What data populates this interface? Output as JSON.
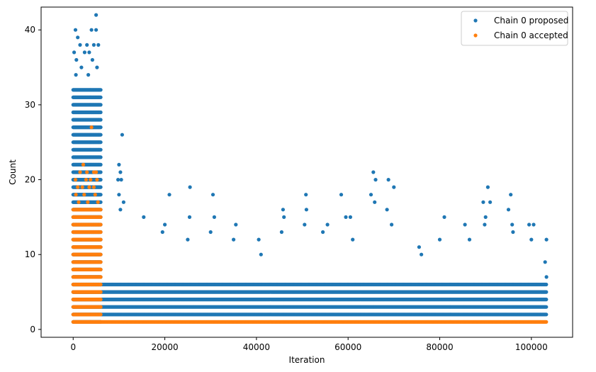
{
  "chart_data": {
    "type": "scatter",
    "title": "",
    "xlabel": "Iteration",
    "ylabel": "Count",
    "xlim": [
      -7000,
      109000
    ],
    "ylim": [
      -1.05,
      43.05
    ],
    "xticks": [
      0,
      20000,
      40000,
      60000,
      80000,
      100000
    ],
    "xtick_labels": [
      "0",
      "20000",
      "40000",
      "60000",
      "80000",
      "100000"
    ],
    "yticks": [
      0,
      10,
      20,
      30,
      40
    ],
    "ytick_labels": [
      "0",
      "10",
      "20",
      "30",
      "40"
    ],
    "grid": false,
    "legend_position": "top-right",
    "series": [
      {
        "name": "Chain 0 proposed",
        "color": "#1f77b4",
        "marker": "circle",
        "segments": [
          {
            "x_range": [
              0,
              6000
            ],
            "y_min": 1,
            "y_max": 32
          },
          {
            "x_range": [
              6000,
              103300
            ],
            "y_min": 2,
            "y_max": 6
          }
        ],
        "points": [
          [
            5000,
            42
          ],
          [
            500,
            40
          ],
          [
            4000,
            40
          ],
          [
            5000,
            40
          ],
          [
            1000,
            39
          ],
          [
            1500,
            38
          ],
          [
            3000,
            38
          ],
          [
            4500,
            38
          ],
          [
            5500,
            38
          ],
          [
            200,
            37
          ],
          [
            2500,
            37
          ],
          [
            3500,
            37
          ],
          [
            700,
            36
          ],
          [
            4200,
            36
          ],
          [
            1800,
            35
          ],
          [
            5200,
            35
          ],
          [
            600,
            34
          ],
          [
            3300,
            34
          ],
          [
            10700,
            26
          ],
          [
            10000,
            22
          ],
          [
            10300,
            21
          ],
          [
            9800,
            20
          ],
          [
            10500,
            20
          ],
          [
            10000,
            18
          ],
          [
            11000,
            17
          ],
          [
            10300,
            16
          ],
          [
            15400,
            15
          ],
          [
            21000,
            18
          ],
          [
            20000,
            14
          ],
          [
            19500,
            13
          ],
          [
            25500,
            19
          ],
          [
            25400,
            15
          ],
          [
            25000,
            12
          ],
          [
            30500,
            18
          ],
          [
            30800,
            15
          ],
          [
            30000,
            13
          ],
          [
            35500,
            14
          ],
          [
            35000,
            12
          ],
          [
            40500,
            12
          ],
          [
            41000,
            10
          ],
          [
            45800,
            16
          ],
          [
            46000,
            15
          ],
          [
            45500,
            13
          ],
          [
            50800,
            18
          ],
          [
            50900,
            16
          ],
          [
            50500,
            14
          ],
          [
            55500,
            14
          ],
          [
            54500,
            13
          ],
          [
            58500,
            18
          ],
          [
            59500,
            15
          ],
          [
            60500,
            15
          ],
          [
            61000,
            12
          ],
          [
            65500,
            21
          ],
          [
            65000,
            18
          ],
          [
            66000,
            20
          ],
          [
            65800,
            17
          ],
          [
            68800,
            20
          ],
          [
            68500,
            16
          ],
          [
            70000,
            19
          ],
          [
            69500,
            14
          ],
          [
            75500,
            11
          ],
          [
            76000,
            10
          ],
          [
            81000,
            15
          ],
          [
            80000,
            12
          ],
          [
            85500,
            14
          ],
          [
            86500,
            12
          ],
          [
            89500,
            17
          ],
          [
            90500,
            19
          ],
          [
            91000,
            17
          ],
          [
            90000,
            15
          ],
          [
            89800,
            14
          ],
          [
            95500,
            18
          ],
          [
            95000,
            16
          ],
          [
            95800,
            14
          ],
          [
            96000,
            13
          ],
          [
            99500,
            14
          ],
          [
            100500,
            14
          ],
          [
            100000,
            12
          ],
          [
            103300,
            12
          ],
          [
            103000,
            9
          ],
          [
            103300,
            7
          ]
        ]
      },
      {
        "name": "Chain 0 accepted",
        "color": "#ff7f0e",
        "marker": "circle",
        "segments": [
          {
            "x_range": [
              0,
              6000
            ],
            "y_min": 1,
            "y_max": 16
          },
          {
            "x_range": [
              6000,
              103300
            ],
            "y_min": 1,
            "y_max": 1
          }
        ],
        "points": [
          [
            4000,
            27
          ],
          [
            2200,
            22
          ],
          [
            1500,
            21
          ],
          [
            3000,
            21
          ],
          [
            4500,
            21
          ],
          [
            5000,
            21
          ],
          [
            500,
            20
          ],
          [
            2800,
            20
          ],
          [
            3800,
            20
          ],
          [
            5200,
            20
          ],
          [
            1000,
            19
          ],
          [
            2000,
            19
          ],
          [
            3500,
            19
          ],
          [
            4500,
            19
          ],
          [
            600,
            18
          ],
          [
            2400,
            18
          ],
          [
            4800,
            18
          ],
          [
            1200,
            17
          ],
          [
            3200,
            17
          ],
          [
            5400,
            17
          ]
        ]
      }
    ]
  }
}
